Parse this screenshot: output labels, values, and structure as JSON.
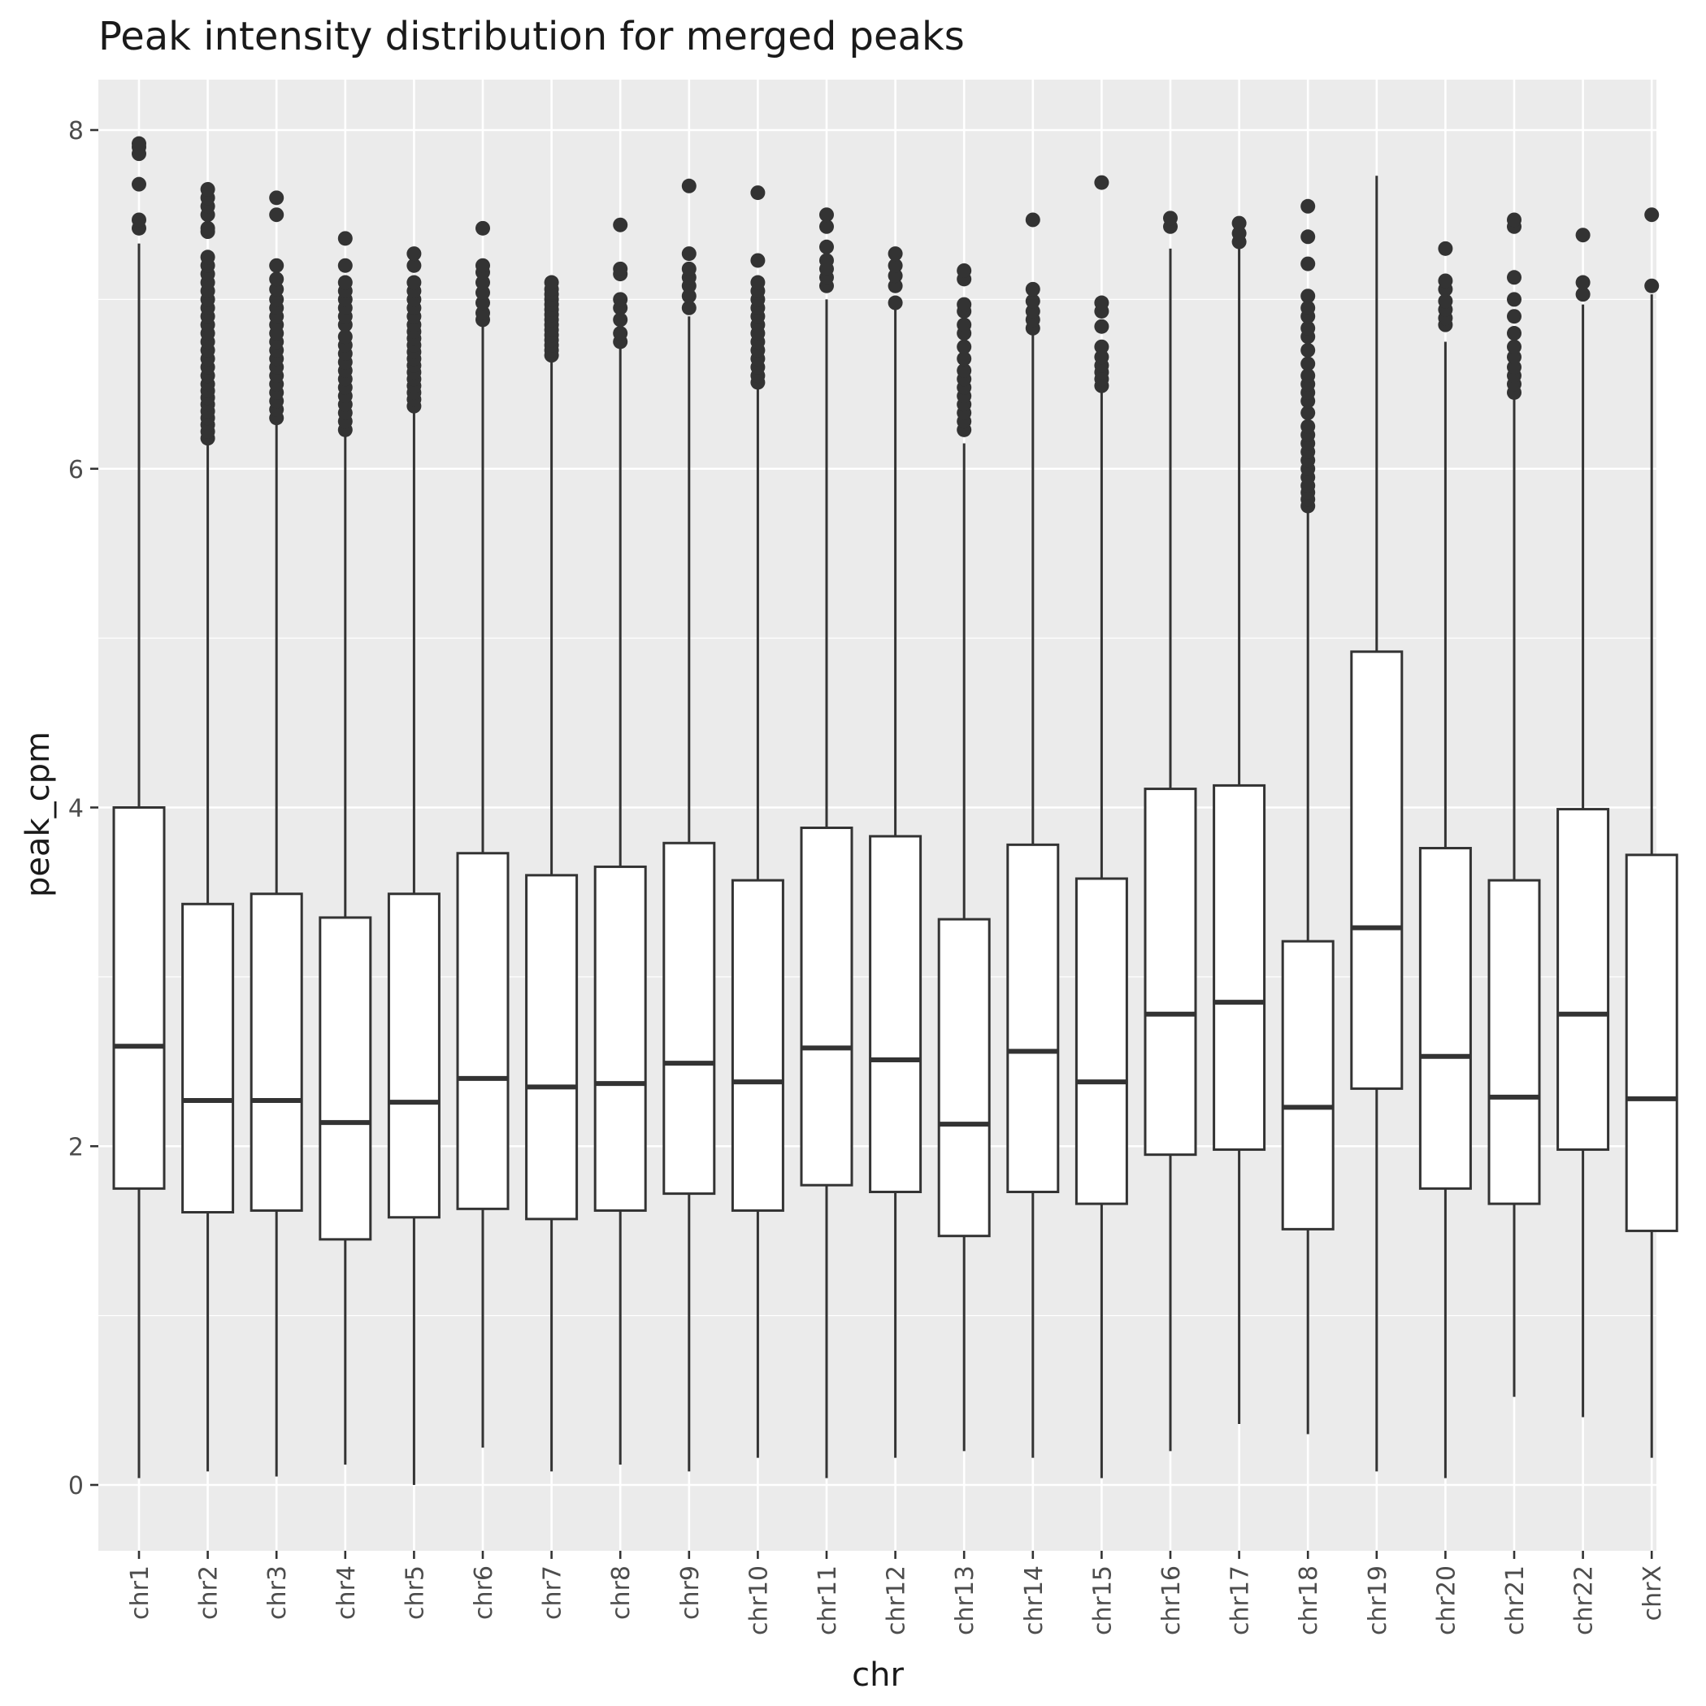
{
  "chart_data": {
    "type": "boxplot",
    "title": "Peak intensity distribution for merged peaks",
    "xlabel": "chr",
    "ylabel": "peak_cpm",
    "ylim": [
      -0.4,
      8.3
    ],
    "yticks": [
      0,
      2,
      4,
      6,
      8
    ],
    "grid": true,
    "legend": "none",
    "colors": {
      "panel": "#ebebeb",
      "grid": "#ffffff",
      "box_fill": "#ffffff",
      "box_line": "#333333",
      "outlier": "#333333"
    },
    "categories": [
      "chr1",
      "chr2",
      "chr3",
      "chr4",
      "chr5",
      "chr6",
      "chr7",
      "chr8",
      "chr9",
      "chr10",
      "chr11",
      "chr12",
      "chr13",
      "chr14",
      "chr15",
      "chr16",
      "chr17",
      "chr18",
      "chr19",
      "chr20",
      "chr21",
      "chr22",
      "chrX"
    ],
    "boxes": [
      {
        "min": 0.04,
        "q1": 1.75,
        "median": 2.59,
        "q3": 4.0,
        "max": 7.33,
        "outliers": [
          7.42,
          7.47,
          7.68,
          7.86,
          7.9,
          7.92
        ]
      },
      {
        "min": 0.08,
        "q1": 1.61,
        "median": 2.27,
        "q3": 3.43,
        "max": 6.15,
        "outliers": [
          6.18,
          6.22,
          6.26,
          6.3,
          6.34,
          6.38,
          6.42,
          6.46,
          6.5,
          6.55,
          6.6,
          6.65,
          6.7,
          6.75,
          6.8,
          6.85,
          6.9,
          6.95,
          7.0,
          7.05,
          7.1,
          7.15,
          7.2,
          7.25,
          7.4,
          7.42,
          7.5,
          7.55,
          7.6,
          7.65
        ]
      },
      {
        "min": 0.05,
        "q1": 1.62,
        "median": 2.27,
        "q3": 3.49,
        "max": 6.27,
        "outliers": [
          6.3,
          6.35,
          6.4,
          6.45,
          6.5,
          6.55,
          6.6,
          6.65,
          6.7,
          6.75,
          6.8,
          6.85,
          6.9,
          6.95,
          7.0,
          7.06,
          7.12,
          7.2,
          7.5,
          7.6
        ]
      },
      {
        "min": 0.12,
        "q1": 1.45,
        "median": 2.14,
        "q3": 3.35,
        "max": 6.2,
        "outliers": [
          6.23,
          6.28,
          6.33,
          6.38,
          6.43,
          6.48,
          6.53,
          6.58,
          6.63,
          6.68,
          6.73,
          6.78,
          6.85,
          6.9,
          6.95,
          7.0,
          7.05,
          7.1,
          7.2,
          7.36
        ]
      },
      {
        "min": 0.0,
        "q1": 1.58,
        "median": 2.26,
        "q3": 3.49,
        "max": 6.35,
        "outliers": [
          6.37,
          6.41,
          6.45,
          6.49,
          6.53,
          6.57,
          6.61,
          6.65,
          6.69,
          6.73,
          6.77,
          6.81,
          6.85,
          6.9,
          6.95,
          7.0,
          7.05,
          7.1,
          7.2,
          7.27
        ]
      },
      {
        "min": 0.22,
        "q1": 1.63,
        "median": 2.4,
        "q3": 3.73,
        "max": 6.85,
        "outliers": [
          6.88,
          6.92,
          6.98,
          7.04,
          7.1,
          7.16,
          7.2,
          7.42
        ]
      },
      {
        "min": 0.08,
        "q1": 1.57,
        "median": 2.35,
        "q3": 3.6,
        "max": 6.64,
        "outliers": [
          6.67,
          6.7,
          6.73,
          6.76,
          6.79,
          6.82,
          6.85,
          6.88,
          6.91,
          6.94,
          6.97,
          7.0,
          7.03,
          7.06,
          7.1
        ]
      },
      {
        "min": 0.12,
        "q1": 1.62,
        "median": 2.37,
        "q3": 3.65,
        "max": 6.72,
        "outliers": [
          6.75,
          6.8,
          6.88,
          6.95,
          7.0,
          7.15,
          7.18,
          7.44
        ]
      },
      {
        "min": 0.08,
        "q1": 1.72,
        "median": 2.49,
        "q3": 3.79,
        "max": 6.9,
        "outliers": [
          6.95,
          7.02,
          7.08,
          7.13,
          7.18,
          7.27,
          7.67
        ]
      },
      {
        "min": 0.16,
        "q1": 1.62,
        "median": 2.38,
        "q3": 3.57,
        "max": 6.48,
        "outliers": [
          6.51,
          6.55,
          6.6,
          6.65,
          6.7,
          6.75,
          6.8,
          6.85,
          6.9,
          6.95,
          7.0,
          7.05,
          7.1,
          7.23,
          7.63
        ]
      },
      {
        "min": 0.04,
        "q1": 1.77,
        "median": 2.58,
        "q3": 3.88,
        "max": 7.0,
        "outliers": [
          7.08,
          7.13,
          7.18,
          7.23,
          7.31,
          7.43,
          7.5
        ]
      },
      {
        "min": 0.16,
        "q1": 1.73,
        "median": 2.51,
        "q3": 3.83,
        "max": 6.95,
        "outliers": [
          6.98,
          7.08,
          7.14,
          7.2,
          7.27
        ]
      },
      {
        "min": 0.2,
        "q1": 1.47,
        "median": 2.13,
        "q3": 3.34,
        "max": 6.15,
        "outliers": [
          6.23,
          6.28,
          6.33,
          6.38,
          6.43,
          6.48,
          6.53,
          6.58,
          6.65,
          6.72,
          6.8,
          6.85,
          6.93,
          6.97,
          7.12,
          7.17
        ]
      },
      {
        "min": 0.16,
        "q1": 1.73,
        "median": 2.56,
        "q3": 3.78,
        "max": 6.8,
        "outliers": [
          6.83,
          6.88,
          6.93,
          6.99,
          7.06,
          7.47
        ]
      },
      {
        "min": 0.04,
        "q1": 1.66,
        "median": 2.38,
        "q3": 3.58,
        "max": 6.46,
        "outliers": [
          6.49,
          6.53,
          6.57,
          6.61,
          6.66,
          6.72,
          6.84,
          6.93,
          6.98,
          7.69
        ]
      },
      {
        "min": 0.2,
        "q1": 1.95,
        "median": 2.78,
        "q3": 4.11,
        "max": 7.3,
        "outliers": [
          7.43,
          7.48
        ]
      },
      {
        "min": 0.36,
        "q1": 1.98,
        "median": 2.85,
        "q3": 4.13,
        "max": 7.3,
        "outliers": [
          7.34,
          7.39,
          7.45
        ]
      },
      {
        "min": 0.3,
        "q1": 1.51,
        "median": 2.23,
        "q3": 3.21,
        "max": 5.75,
        "outliers": [
          5.78,
          5.82,
          5.86,
          5.9,
          5.95,
          6.0,
          6.05,
          6.1,
          6.15,
          6.2,
          6.25,
          6.33,
          6.4,
          6.45,
          6.5,
          6.55,
          6.62,
          6.7,
          6.78,
          6.83,
          6.9,
          6.95,
          7.02,
          7.21,
          7.37,
          7.55
        ]
      },
      {
        "min": 0.08,
        "q1": 2.34,
        "median": 3.29,
        "q3": 4.92,
        "max": 7.73,
        "outliers": []
      },
      {
        "min": 0.04,
        "q1": 1.75,
        "median": 2.53,
        "q3": 3.76,
        "max": 6.75,
        "outliers": [
          6.85,
          6.89,
          6.94,
          6.99,
          7.06,
          7.11,
          7.3
        ]
      },
      {
        "min": 0.52,
        "q1": 1.66,
        "median": 2.29,
        "q3": 3.57,
        "max": 6.43,
        "outliers": [
          6.45,
          6.5,
          6.55,
          6.6,
          6.66,
          6.72,
          6.8,
          6.9,
          7.0,
          7.13,
          7.43,
          7.47
        ]
      },
      {
        "min": 0.4,
        "q1": 1.98,
        "median": 2.78,
        "q3": 3.99,
        "max": 6.97,
        "outliers": [
          7.03,
          7.1,
          7.38
        ]
      },
      {
        "min": 0.16,
        "q1": 1.5,
        "median": 2.28,
        "q3": 3.72,
        "max": 7.03,
        "outliers": [
          7.08,
          7.5
        ]
      }
    ]
  }
}
